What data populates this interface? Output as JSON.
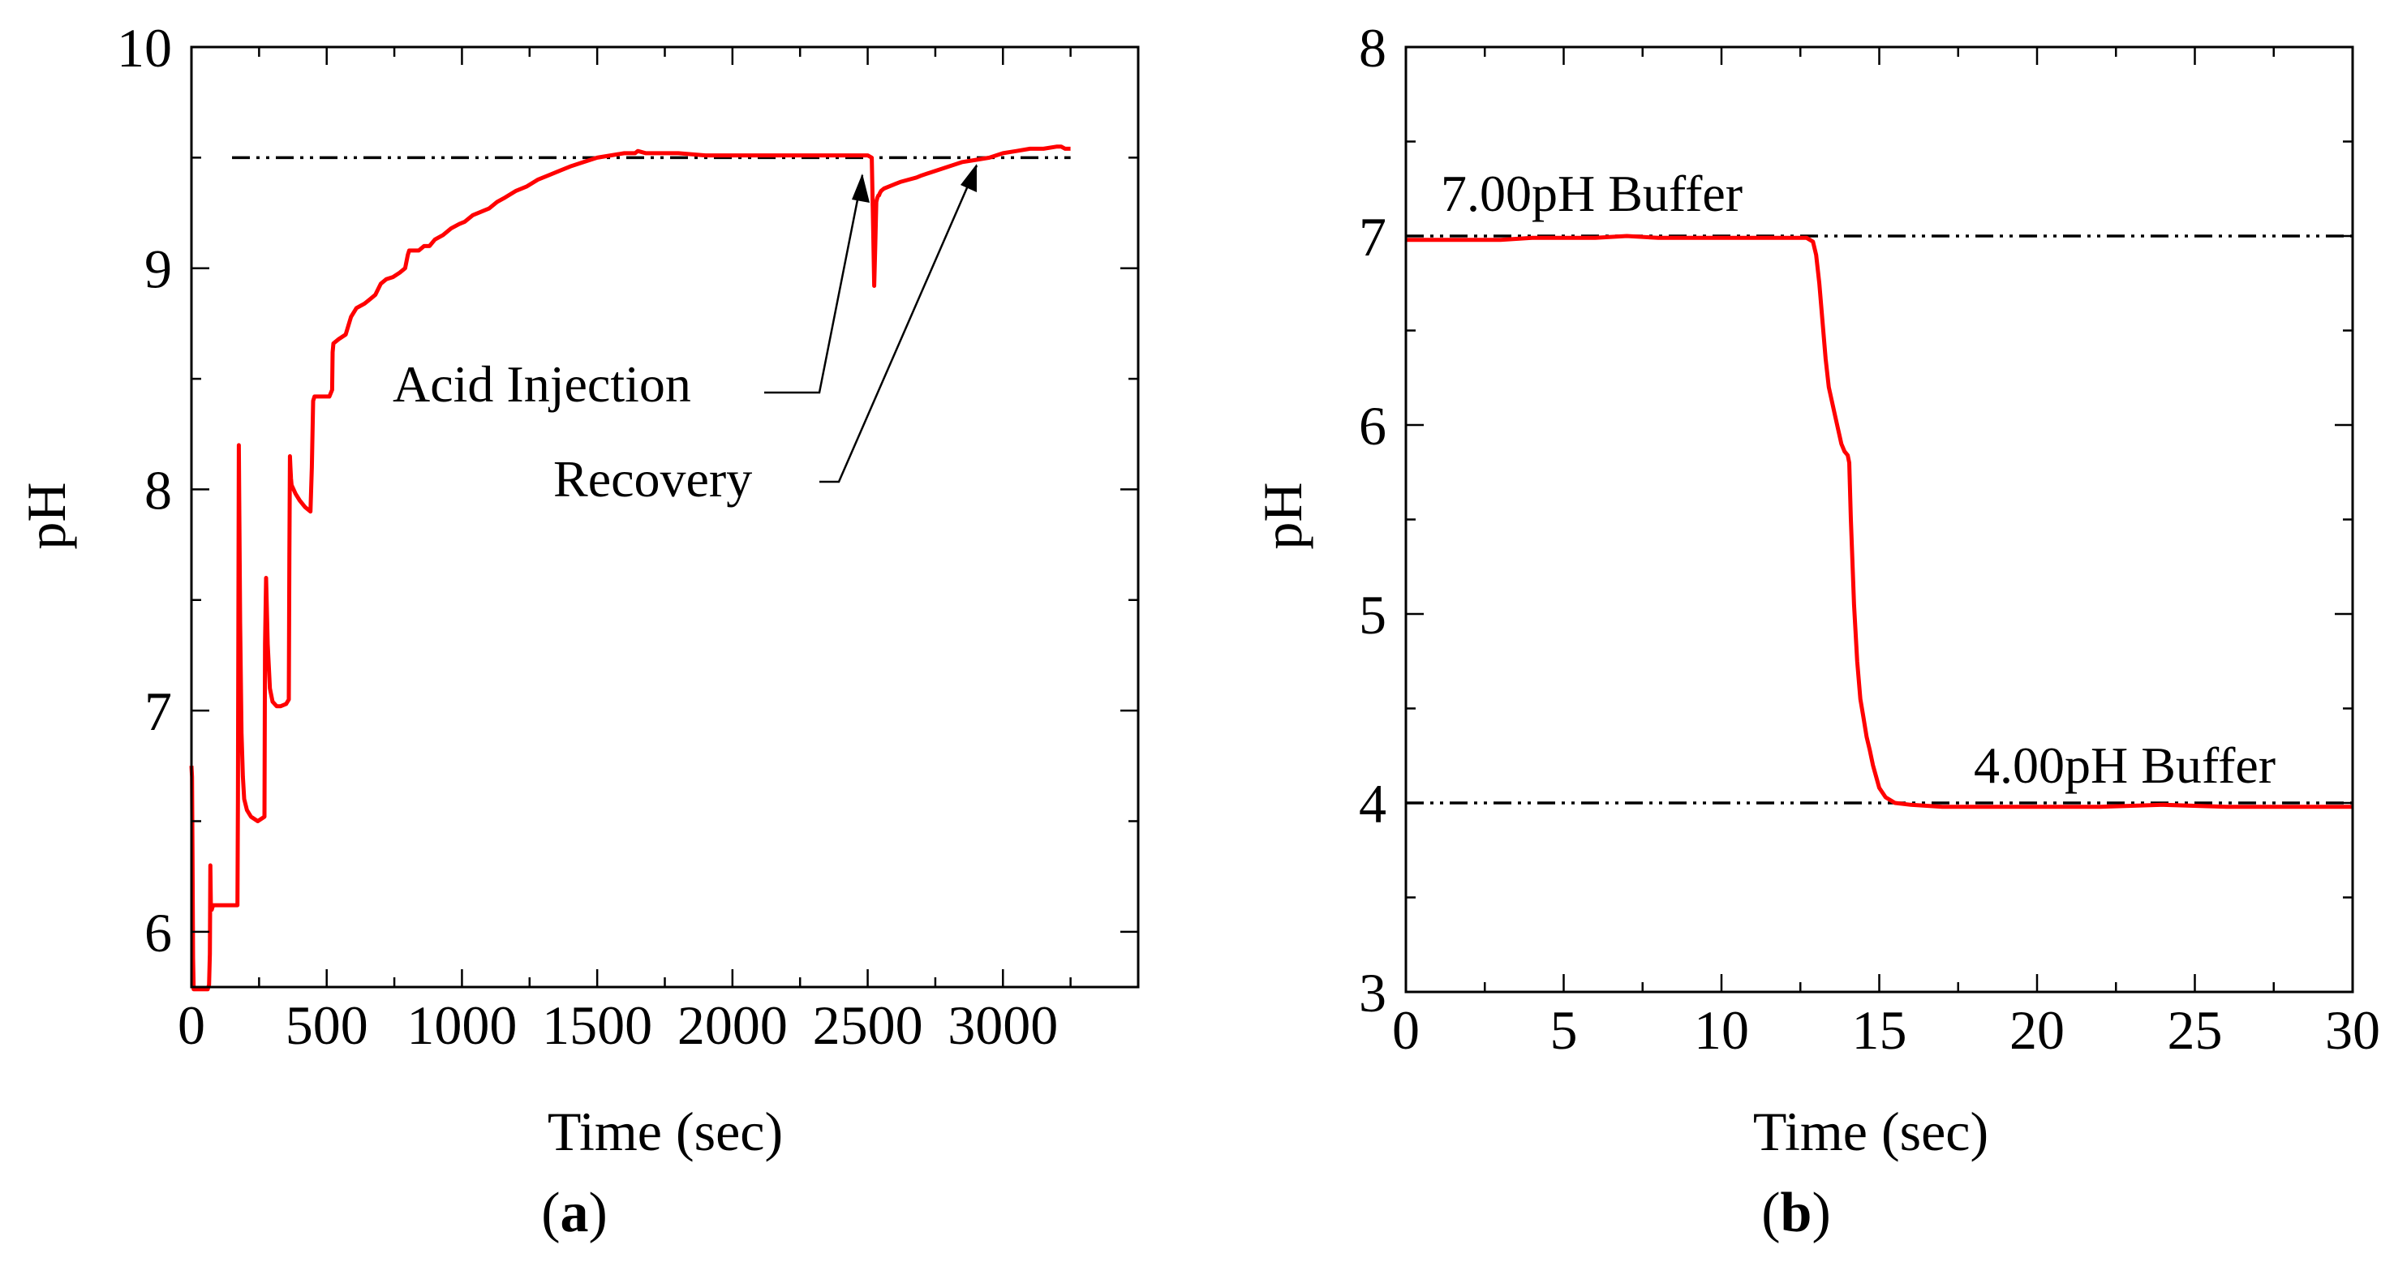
{
  "colors": {
    "series": "#ff0000",
    "reference": "#000000",
    "axes": "#000000"
  },
  "chart_data": [
    {
      "type": "line",
      "panel_label": {
        "open": "(",
        "letter": "a",
        "close": ")"
      },
      "title": "",
      "xlabel": "Time (sec)",
      "ylabel": "pH",
      "xlim": [
        0,
        3500
      ],
      "ylim": [
        5.75,
        10
      ],
      "xticks": [
        0,
        500,
        1000,
        1500,
        2000,
        2500,
        3000
      ],
      "xtick_labels": [
        "0",
        "500",
        "1000",
        "1500",
        "2000",
        "2500",
        "3000"
      ],
      "yticks": [
        6,
        7,
        8,
        9,
        10
      ],
      "ytick_labels": [
        "6",
        "7",
        "8",
        "9",
        "10"
      ],
      "reference_lines": [
        {
          "y": 9.5,
          "x_from": 150,
          "x_to": 3250,
          "style": "dash-dot-dot",
          "label": ""
        }
      ],
      "annotations": [
        {
          "text": "Acid Injection",
          "points_to": {
            "x": 2520,
            "y": 9.4
          }
        },
        {
          "text": "Recovery",
          "points_to": {
            "x": 2910,
            "y": 9.48
          }
        }
      ],
      "series": [
        {
          "name": "pH",
          "x": [
            0,
            2,
            4,
            6,
            8,
            12,
            40,
            60,
            65,
            68,
            70,
            72,
            75,
            80,
            85,
            90,
            170,
            172,
            175,
            180,
            185,
            190,
            195,
            205,
            220,
            245,
            270,
            272,
            276,
            282,
            290,
            300,
            315,
            330,
            350,
            360,
            362,
            364,
            366,
            368,
            370,
            385,
            400,
            420,
            440,
            445,
            450,
            455,
            460,
            475,
            495,
            510,
            520,
            522,
            525,
            545,
            570,
            590,
            610,
            640,
            660,
            680,
            700,
            720,
            745,
            770,
            790,
            800,
            805,
            840,
            860,
            880,
            900,
            930,
            960,
            990,
            1010,
            1040,
            1080,
            1100,
            1130,
            1160,
            1200,
            1240,
            1280,
            1320,
            1360,
            1400,
            1450,
            1500,
            1550,
            1600,
            1640,
            1650,
            1680,
            1700,
            1800,
            1900,
            2000,
            2100,
            2200,
            2300,
            2400,
            2500,
            2515,
            2520,
            2524,
            2528,
            2532,
            2536,
            2540,
            2542,
            2545,
            2550,
            2560,
            2580,
            2600,
            2620,
            2650,
            2680,
            2700,
            2750,
            2800,
            2850,
            2900,
            2950,
            3000,
            3050,
            3100,
            3150,
            3200,
            3215,
            3230,
            3250
          ],
          "values": [
            6.75,
            6.7,
            6.35,
            5.88,
            5.74,
            5.74,
            5.74,
            5.74,
            5.76,
            5.9,
            6.3,
            6.1,
            6.1,
            6.12,
            6.12,
            6.12,
            6.12,
            6.6,
            8.2,
            7.4,
            6.9,
            6.7,
            6.6,
            6.55,
            6.52,
            6.5,
            6.52,
            7.3,
            7.6,
            7.3,
            7.1,
            7.04,
            7.02,
            7.02,
            7.03,
            7.05,
            7.7,
            8.15,
            8.1,
            8.05,
            8.02,
            7.98,
            7.95,
            7.92,
            7.9,
            8.1,
            8.4,
            8.42,
            8.42,
            8.42,
            8.42,
            8.42,
            8.45,
            8.62,
            8.66,
            8.68,
            8.7,
            8.78,
            8.82,
            8.84,
            8.86,
            8.88,
            8.93,
            8.95,
            8.96,
            8.98,
            9.0,
            9.06,
            9.08,
            9.08,
            9.1,
            9.1,
            9.13,
            9.15,
            9.18,
            9.2,
            9.21,
            9.24,
            9.26,
            9.27,
            9.3,
            9.32,
            9.35,
            9.37,
            9.4,
            9.42,
            9.44,
            9.46,
            9.48,
            9.5,
            9.51,
            9.52,
            9.52,
            9.53,
            9.52,
            9.52,
            9.52,
            9.51,
            9.51,
            9.51,
            9.51,
            9.51,
            9.51,
            9.51,
            9.5,
            9.2,
            8.92,
            9.1,
            9.3,
            9.32,
            9.33,
            9.33,
            9.34,
            9.35,
            9.36,
            9.37,
            9.38,
            9.39,
            9.4,
            9.41,
            9.42,
            9.44,
            9.46,
            9.48,
            9.49,
            9.5,
            9.52,
            9.53,
            9.54,
            9.54,
            9.55,
            9.55,
            9.54,
            9.54
          ]
        }
      ]
    },
    {
      "type": "line",
      "panel_label": {
        "open": "(",
        "letter": "b",
        "close": ")"
      },
      "title": "",
      "xlabel": "Time (sec)",
      "ylabel": "pH",
      "xlim": [
        0,
        30
      ],
      "ylim": [
        3,
        8
      ],
      "xticks": [
        0,
        5,
        10,
        15,
        20,
        25,
        30
      ],
      "xtick_labels": [
        "0",
        "5",
        "10",
        "15",
        "20",
        "25",
        "30"
      ],
      "yticks": [
        3,
        4,
        5,
        6,
        7,
        8
      ],
      "ytick_labels": [
        "3",
        "4",
        "5",
        "6",
        "7",
        "8"
      ],
      "reference_lines": [
        {
          "y": 7,
          "x_from": 0,
          "x_to": 30,
          "style": "dash-dot-dot",
          "label": "7.00pH Buffer"
        },
        {
          "y": 4,
          "x_from": 0,
          "x_to": 30,
          "style": "dash-dot-dot",
          "label": "4.00pH Buffer"
        }
      ],
      "annotations": [],
      "series": [
        {
          "name": "pH",
          "x": [
            0,
            1,
            2,
            3,
            4,
            5,
            6,
            7,
            8,
            9,
            10,
            11,
            12,
            12.5,
            12.7,
            12.9,
            13.0,
            13.1,
            13.2,
            13.3,
            13.4,
            13.6,
            13.8,
            13.9,
            14.0,
            14.05,
            14.1,
            14.2,
            14.3,
            14.4,
            14.5,
            14.6,
            14.7,
            14.8,
            15.0,
            15.2,
            15.5,
            16,
            17,
            18,
            20,
            22,
            24,
            26,
            28,
            30
          ],
          "values": [
            6.98,
            6.98,
            6.98,
            6.98,
            6.99,
            6.99,
            6.99,
            7.0,
            6.99,
            6.99,
            6.99,
            6.99,
            6.99,
            6.99,
            6.99,
            6.97,
            6.9,
            6.75,
            6.55,
            6.35,
            6.2,
            6.05,
            5.9,
            5.86,
            5.84,
            5.8,
            5.5,
            5.05,
            4.75,
            4.55,
            4.45,
            4.35,
            4.28,
            4.2,
            4.08,
            4.03,
            4.0,
            3.99,
            3.98,
            3.98,
            3.98,
            3.98,
            3.99,
            3.98,
            3.98,
            3.98
          ]
        }
      ]
    }
  ]
}
